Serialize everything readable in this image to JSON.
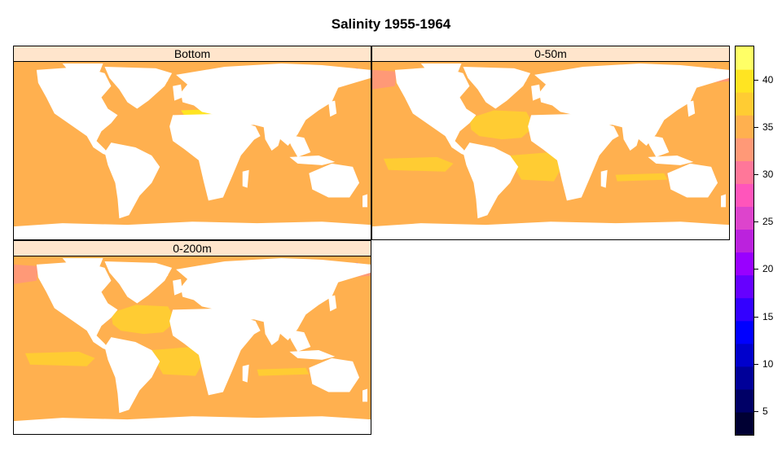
{
  "title": "Salinity 1955-1964",
  "panels": [
    {
      "label": "Bottom",
      "base_color": "#ffb04f",
      "regions": [
        "hudson",
        "baltic-dark",
        "black-sea",
        "med-yellow",
        "arctic-strip"
      ]
    },
    {
      "label": "0-50m",
      "base_color": "#ffb04f",
      "regions": [
        "hudson",
        "baltic-dark",
        "black-sea",
        "atl-yellow",
        "sp-yellow",
        "si-yellow",
        "subpolar-pink",
        "arctic-strip"
      ]
    },
    {
      "label": "0-200m",
      "base_color": "#ffb04f",
      "regions": [
        "hudson",
        "baltic-dark",
        "black-sea",
        "atl-yellow",
        "sp-yellow",
        "si-yellow",
        "subpolar-pink",
        "arctic-strip"
      ]
    }
  ],
  "colorkey": {
    "min": 2.5,
    "max": 43.5,
    "colors": [
      "#000033",
      "#000066",
      "#000099",
      "#0000cc",
      "#0000ff",
      "#3300ff",
      "#6600ff",
      "#9900ff",
      "#bb22dd",
      "#dd44cc",
      "#ff55bb",
      "#ff7799",
      "#ff9977",
      "#ffb04f",
      "#ffcc33",
      "#ffe422",
      "#ffff66"
    ],
    "ticks": [
      "5",
      "10",
      "15",
      "20",
      "25",
      "30",
      "35",
      "40"
    ],
    "tick_values": [
      5,
      10,
      15,
      20,
      25,
      30,
      35,
      40
    ]
  }
}
